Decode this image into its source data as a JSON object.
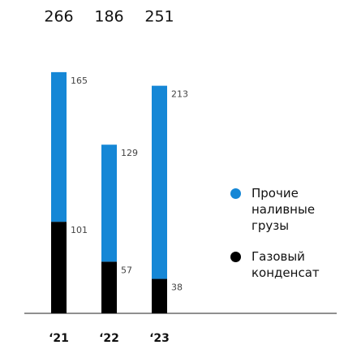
{
  "chart_data": {
    "type": "stacked_bar",
    "categories": [
      "‘21",
      "‘22",
      "‘23"
    ],
    "totals": [
      266,
      186,
      251
    ],
    "series": [
      {
        "name": "Газовый конденсат",
        "color": "#000000",
        "values": [
          101,
          57,
          38
        ]
      },
      {
        "name": "Прочие наливные грузы",
        "color": "#1587d6",
        "values": [
          165,
          129,
          213
        ]
      }
    ]
  }
}
